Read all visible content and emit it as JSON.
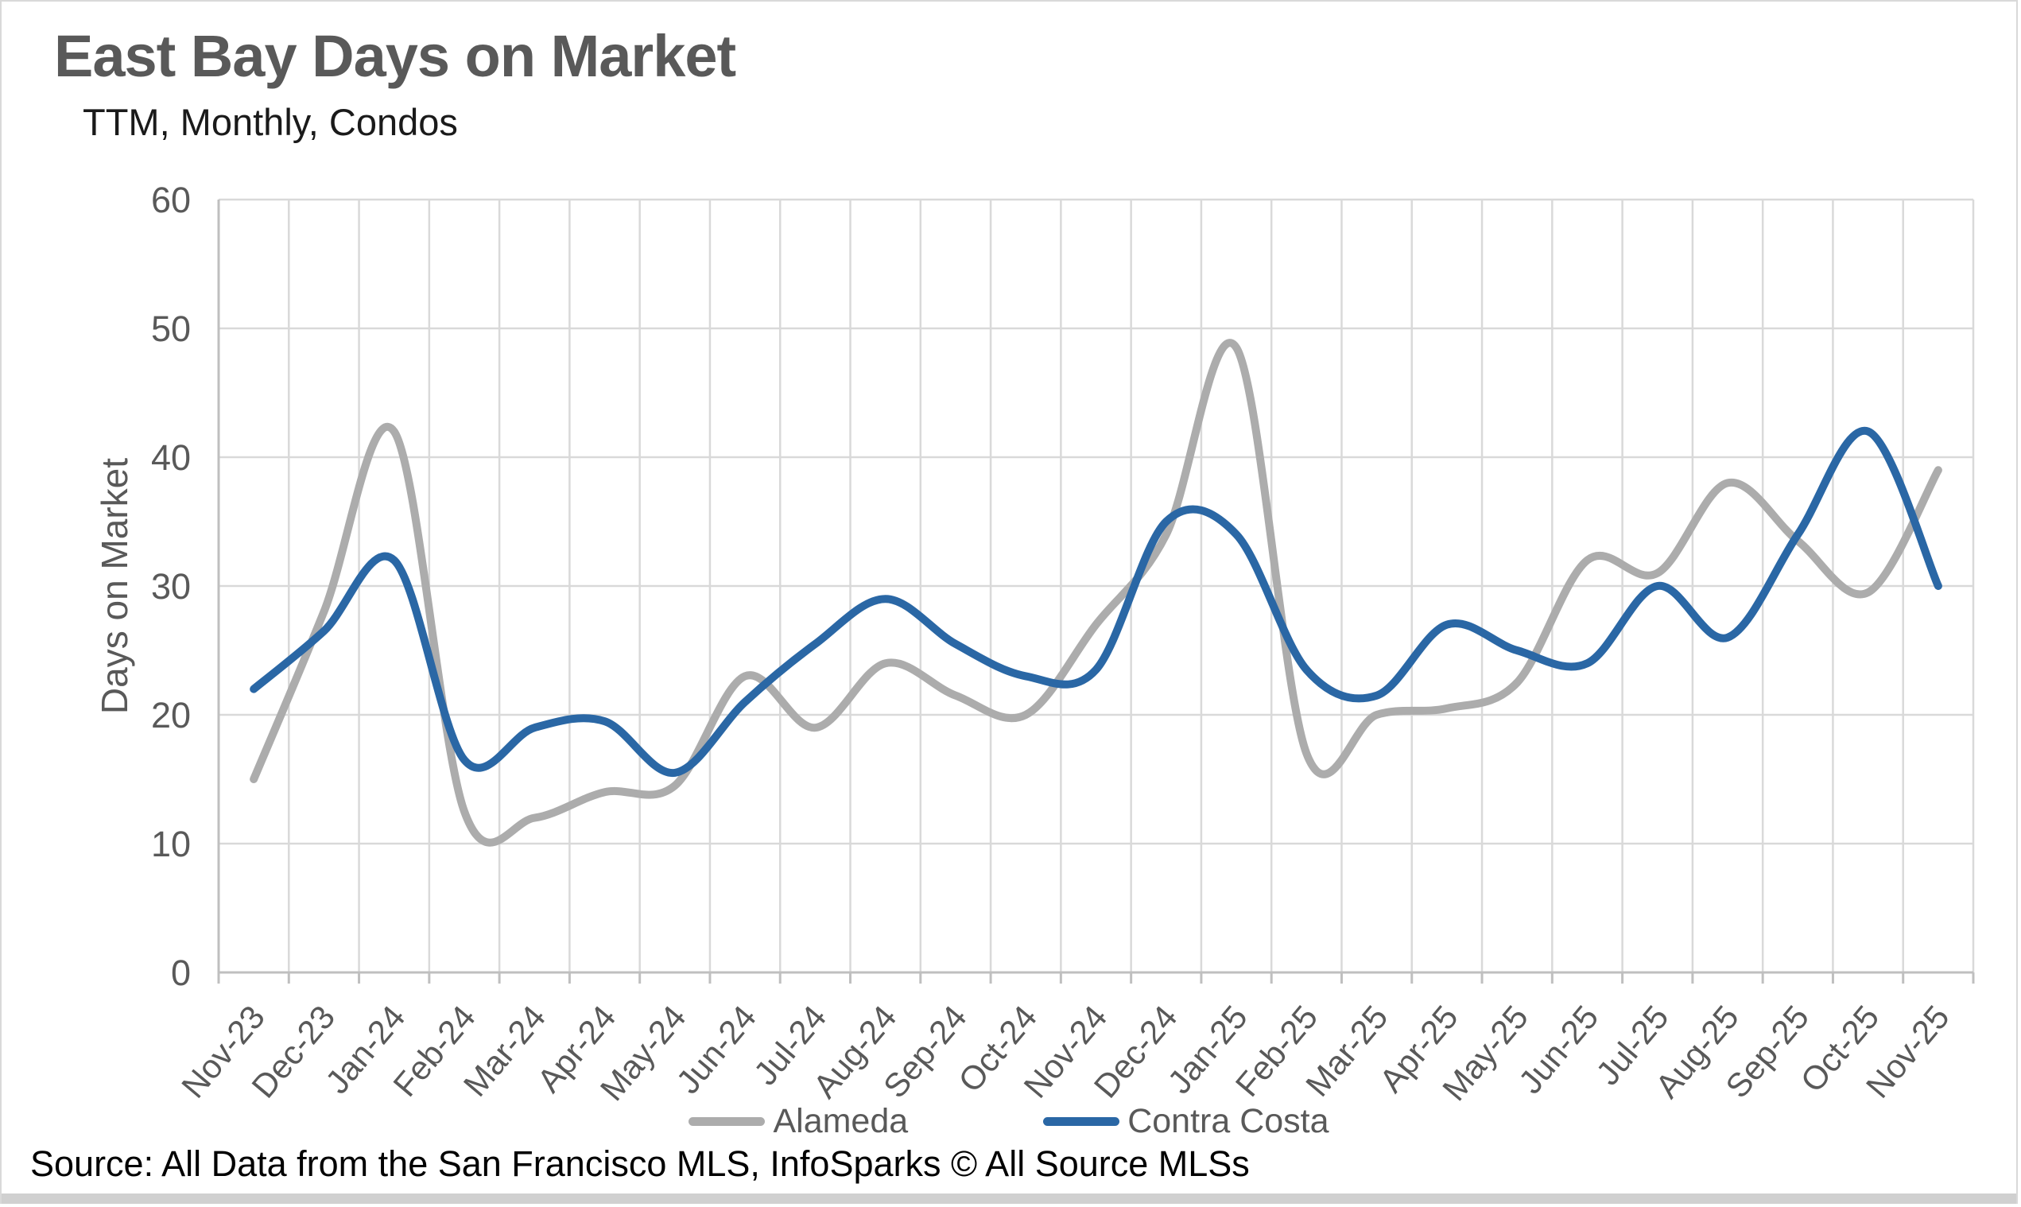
{
  "chart_data": {
    "type": "line",
    "title": "East Bay Days on Market",
    "subtitle": "TTM, Monthly, Condos",
    "ylabel": "Days on Market",
    "xlabel": "",
    "ylim": [
      0,
      60
    ],
    "yticks": [
      0,
      10,
      20,
      30,
      40,
      50,
      60
    ],
    "grid": true,
    "smoothed": true,
    "legend_position": "bottom-center",
    "gridline_color": "#d9d9d9",
    "axis_color": "#bfbfbf",
    "tick_label_color": "#595959",
    "categories": [
      "Nov-23",
      "Dec-23",
      "Jan-24",
      "Feb-24",
      "Mar-24",
      "Apr-24",
      "May-24",
      "Jun-24",
      "Jul-24",
      "Aug-24",
      "Sep-24",
      "Oct-24",
      "Nov-24",
      "Dec-24",
      "Jan-25",
      "Feb-25",
      "Mar-25",
      "Apr-25",
      "May-25",
      "Jun-25",
      "Jul-25",
      "Aug-25",
      "Sep-25",
      "Oct-25",
      "Nov-25"
    ],
    "series": [
      {
        "name": "Alameda",
        "color": "#acacac",
        "values": [
          15,
          28,
          42,
          12.5,
          12,
          14,
          14.5,
          23,
          19,
          24,
          21.5,
          20,
          27,
          34,
          48.5,
          17,
          20,
          20.5,
          22.5,
          32,
          31,
          38,
          33.5,
          29.5,
          39
        ]
      },
      {
        "name": "Contra Costa",
        "color": "#2a67a5",
        "values": [
          22,
          26.5,
          32,
          16.5,
          19,
          19.5,
          15.5,
          21,
          25.5,
          29,
          25.5,
          23,
          23.5,
          35,
          34,
          23.5,
          21.5,
          27,
          25,
          24,
          30,
          26,
          34,
          42,
          30
        ]
      }
    ]
  },
  "footer": {
    "source": "Source: All Data from the San Francisco MLS, InfoSparks © All Source MLSs"
  }
}
